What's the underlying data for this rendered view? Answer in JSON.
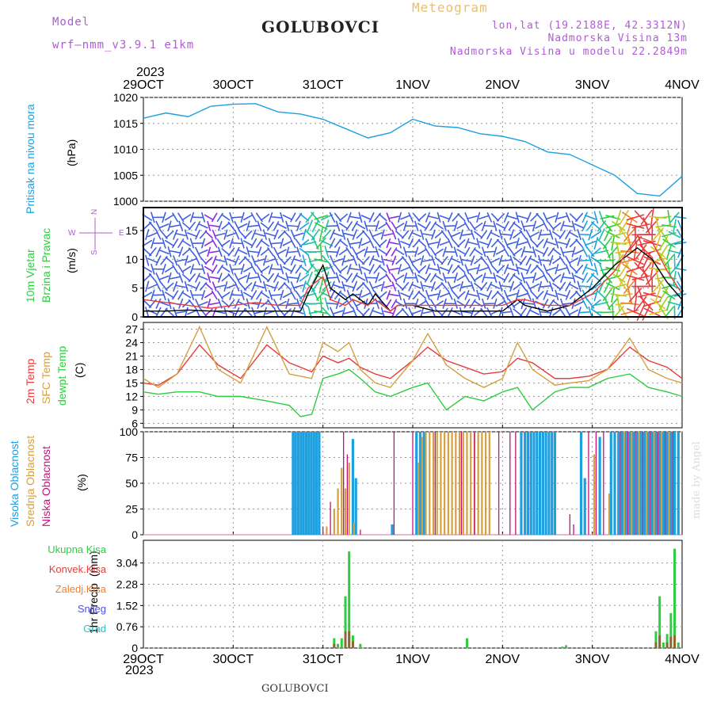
{
  "header": {
    "model_label": "Model",
    "model_name": "wrf—nmm_v3.9.1 e1km",
    "title": "GOLUBOVCI",
    "meteogram": "Meteogram",
    "lonlat": "lon,lat (19.2188E, 42.3312N)",
    "altitude": "Nadmorska Visina 13m",
    "model_altitude": "Nadmorska Visina u modelu 22.2849m",
    "year_top": "2023",
    "year_bottom": "2023",
    "footer_station": "GOLUBOVCI",
    "credit": "made by Angel",
    "colors": {
      "purple": "#b05cd6",
      "gold": "#e6c070",
      "title": "#222222"
    }
  },
  "chart_data": [
    {
      "id": "pressure",
      "type": "line",
      "ylabel": "Pritisak na nivou mora",
      "unit": "(hPa)",
      "ylim": [
        1000,
        1020
      ],
      "yticks": [
        1000,
        1005,
        1010,
        1015,
        1020
      ],
      "xticks": [
        "29OCT",
        "30OCT",
        "31OCT",
        "1NOV",
        "2NOV",
        "3NOV",
        "4NOV"
      ],
      "x_hours": [
        0,
        6,
        12,
        18,
        24,
        30,
        36,
        42,
        48,
        54,
        60,
        66,
        72,
        78,
        84,
        90,
        96,
        102,
        108,
        114,
        120,
        126,
        132,
        138,
        144
      ],
      "series": [
        {
          "color": "#1ca0e0",
          "values": [
            1016,
            1017,
            1016.3,
            1018.3,
            1018.7,
            1018.8,
            1017.2,
            1016.8,
            1015.8,
            1014,
            1012.2,
            1013.2,
            1015.8,
            1014.5,
            1014.2,
            1013,
            1012.5,
            1011.5,
            1009.5,
            1009,
            1007,
            1005,
            1001.5,
            1001,
            1004.8
          ]
        }
      ]
    },
    {
      "id": "wind",
      "type": "line",
      "ylabel": "10m Vjetar",
      "ylabel2": "Brzina i Pravac",
      "unit": "(m/s)",
      "ylim": [
        0,
        19
      ],
      "yticks": [
        0,
        5,
        10,
        15
      ],
      "compass": {
        "n": "N",
        "s": "S",
        "e": "E",
        "w": "W"
      },
      "x_hours": [
        0,
        6,
        12,
        18,
        24,
        30,
        36,
        42,
        44,
        48,
        50,
        54,
        56,
        60,
        62,
        66,
        68,
        72,
        78,
        84,
        90,
        96,
        100,
        102,
        108,
        114,
        120,
        126,
        132,
        136,
        140,
        144
      ],
      "series": [
        {
          "color": "#000000",
          "values": [
            1,
            1,
            1.2,
            1,
            1,
            1,
            1,
            1,
            4,
            9,
            5,
            3,
            4,
            2,
            4,
            1,
            2,
            2,
            1,
            1,
            1,
            1,
            3,
            2,
            1,
            2,
            5,
            9,
            12,
            10,
            6,
            3
          ]
        },
        {
          "color": "#e63c3c",
          "values": [
            3,
            2.5,
            2,
            1.5,
            2,
            2.5,
            2,
            2,
            5,
            7,
            3,
            2,
            3,
            2,
            3,
            1,
            2,
            2,
            2,
            2,
            2,
            2,
            3,
            3,
            2,
            2,
            4,
            8,
            14,
            13,
            8,
            4
          ]
        }
      ]
    },
    {
      "id": "temperature",
      "type": "line",
      "unit": "(C)",
      "ylim": [
        5,
        28.5
      ],
      "yticks": [
        6,
        9,
        12,
        15,
        18,
        21,
        24,
        27
      ],
      "series": [
        {
          "name": "2m Temp",
          "color": "#e63c3c",
          "x": [
            0,
            4,
            9,
            15,
            20,
            26,
            33,
            39,
            45,
            48,
            52,
            55,
            58,
            62,
            66,
            72,
            76,
            81,
            86,
            91,
            96,
            100,
            104,
            110,
            114,
            119,
            124,
            130,
            135,
            140,
            144
          ],
          "values": [
            15,
            14.5,
            17,
            23.5,
            19,
            16,
            23.5,
            19.5,
            17.5,
            21,
            19.5,
            20.5,
            18.5,
            17,
            16,
            20,
            23,
            20,
            18.5,
            17,
            17.5,
            20.5,
            19.5,
            16,
            16,
            16.5,
            18,
            23,
            20,
            18.5,
            16
          ]
        },
        {
          "name": "SFC Temp",
          "color": "#d4a040",
          "x": [
            0,
            4,
            9,
            15,
            20,
            26,
            33,
            39,
            45,
            48,
            52,
            55,
            58,
            62,
            66,
            72,
            76,
            81,
            86,
            91,
            96,
            100,
            104,
            110,
            114,
            119,
            124,
            130,
            135,
            140,
            144
          ],
          "values": [
            16,
            14,
            17,
            27.5,
            18,
            15,
            27.5,
            17,
            16,
            24,
            22,
            24,
            18,
            15,
            14,
            20,
            26,
            19,
            16,
            14,
            16,
            24,
            18,
            14.5,
            15,
            15.5,
            18,
            25,
            18,
            16,
            15
          ]
        },
        {
          "name": "dewpt Temp",
          "color": "#2ecc40",
          "x": [
            0,
            4,
            9,
            15,
            20,
            26,
            33,
            39,
            42,
            45,
            48,
            52,
            55,
            58,
            62,
            66,
            72,
            76,
            81,
            86,
            91,
            96,
            100,
            104,
            110,
            114,
            119,
            124,
            130,
            135,
            140,
            144
          ],
          "values": [
            13,
            12.5,
            13,
            13,
            12,
            12,
            11,
            10,
            7.5,
            8,
            16,
            17,
            18,
            16,
            13,
            12,
            14,
            15,
            9,
            12,
            11,
            13,
            14,
            9,
            13,
            14,
            14,
            16,
            17,
            14,
            13,
            12
          ]
        }
      ]
    },
    {
      "id": "clouds",
      "type": "bar",
      "unit": "(%)",
      "ylim": [
        0,
        100
      ],
      "yticks": [
        0,
        25,
        50,
        75,
        100
      ],
      "series": [
        {
          "name": "Visoka Oblacnost",
          "color": "#1ca0e0",
          "bars": [
            [
              40,
              100
            ],
            [
              40.7,
              100
            ],
            [
              41.4,
              100
            ],
            [
              42.1,
              100
            ],
            [
              42.8,
              100
            ],
            [
              43.5,
              100
            ],
            [
              44.2,
              100
            ],
            [
              44.9,
              100
            ],
            [
              45.6,
              100
            ],
            [
              46.3,
              100
            ],
            [
              47,
              100
            ],
            [
              56,
              93
            ],
            [
              56.8,
              55
            ],
            [
              66.5,
              10
            ],
            [
              73,
              100
            ],
            [
              74,
              100
            ],
            [
              75,
              100
            ],
            [
              101,
              100
            ],
            [
              102,
              100
            ],
            [
              102.8,
              100
            ],
            [
              103.6,
              100
            ],
            [
              104.4,
              100
            ],
            [
              105.2,
              100
            ],
            [
              106,
              100
            ],
            [
              106.8,
              100
            ],
            [
              107.6,
              100
            ],
            [
              108.4,
              100
            ],
            [
              109.2,
              100
            ],
            [
              110,
              100
            ],
            [
              117,
              100
            ],
            [
              118,
              55
            ],
            [
              122,
              95
            ],
            [
              125,
              100
            ],
            [
              126,
              100
            ],
            [
              127,
              100
            ],
            [
              128,
              100
            ],
            [
              129,
              100
            ],
            [
              130,
              100
            ],
            [
              131,
              100
            ],
            [
              132,
              100
            ],
            [
              133,
              100
            ],
            [
              134,
              100
            ],
            [
              135,
              100
            ],
            [
              136,
              100
            ],
            [
              137,
              100
            ],
            [
              138,
              100
            ],
            [
              139,
              100
            ],
            [
              140,
              100
            ],
            [
              141,
              100
            ],
            [
              142,
              100
            ],
            [
              143,
              100
            ]
          ]
        },
        {
          "name": "Srednja Oblacnost",
          "color": "#d4a040",
          "bars": [
            [
              49,
              8
            ],
            [
              51,
              25
            ],
            [
              52,
              45
            ],
            [
              53,
              65
            ],
            [
              54,
              45
            ],
            [
              55,
              70
            ],
            [
              56.3,
              12
            ],
            [
              73.5,
              70
            ],
            [
              74.5,
              95
            ],
            [
              75.5,
              100
            ],
            [
              76.5,
              100
            ],
            [
              77.5,
              100
            ],
            [
              78.5,
              100
            ],
            [
              79.5,
              100
            ],
            [
              80.5,
              100
            ],
            [
              81.5,
              100
            ],
            [
              82.5,
              100
            ],
            [
              83.5,
              100
            ],
            [
              84.5,
              100
            ],
            [
              85.5,
              100
            ],
            [
              86.5,
              100
            ],
            [
              87.5,
              100
            ],
            [
              88.5,
              100
            ],
            [
              89.5,
              100
            ],
            [
              90.5,
              100
            ],
            [
              91.5,
              100
            ],
            [
              92.5,
              100
            ],
            [
              120.5,
              78
            ],
            [
              124.5,
              40
            ],
            [
              128.5,
              100
            ],
            [
              130.5,
              100
            ],
            [
              132.5,
              100
            ],
            [
              134.5,
              100
            ],
            [
              136.5,
              100
            ],
            [
              138.5,
              100
            ],
            [
              140.5,
              100
            ]
          ]
        },
        {
          "name": "Niska Oblacnost",
          "color": "#c0147a",
          "bars": [
            [
              48,
              8
            ],
            [
              50,
              32
            ],
            [
              53.5,
              100
            ],
            [
              54.5,
              78
            ],
            [
              58,
              5
            ],
            [
              67,
              100
            ],
            [
              72,
              100
            ],
            [
              78,
              100
            ],
            [
              85,
              100
            ],
            [
              88.5,
              100
            ],
            [
              95,
              100
            ],
            [
              98,
              100
            ],
            [
              99.5,
              100
            ],
            [
              114,
              20
            ],
            [
              115,
              10
            ],
            [
              119,
              100
            ],
            [
              121,
              100
            ],
            [
              123,
              100
            ],
            [
              127.5,
              100
            ],
            [
              129.5,
              100
            ],
            [
              131.5,
              100
            ],
            [
              133.5,
              100
            ],
            [
              135.5,
              100
            ],
            [
              137.5,
              100
            ],
            [
              139.5,
              100
            ],
            [
              141.5,
              100
            ]
          ]
        }
      ]
    },
    {
      "id": "precip",
      "type": "bar",
      "ylabel": "1hr Precip",
      "unit": "(mm)",
      "ylim": [
        0,
        3.85
      ],
      "yticks": [
        0,
        0.76,
        1.52,
        2.28,
        3.04
      ],
      "ytick_labels": [
        "0",
        "0.76",
        "1.52",
        "2.28",
        "3.04"
      ],
      "legend": [
        "Ukupna Kisa",
        "Konvek.Kisa",
        "Zaledj.Kisa",
        "Snijeg",
        "Grad"
      ],
      "legend_colors": [
        "#2ecc40",
        "#e63c3c",
        "#f08030",
        "#5050e0",
        "#30c0c0"
      ],
      "bars_total": [
        [
          51,
          0.35
        ],
        [
          52,
          0.15
        ],
        [
          53,
          0.35
        ],
        [
          54,
          1.85
        ],
        [
          55,
          3.45
        ],
        [
          56,
          0.45
        ],
        [
          58,
          0.15
        ],
        [
          86.5,
          0.35
        ],
        [
          112,
          0.05
        ],
        [
          113,
          0.1
        ],
        [
          137,
          0.6
        ],
        [
          138,
          1.85
        ],
        [
          139,
          0.2
        ],
        [
          140,
          0.5
        ],
        [
          141,
          1.25
        ],
        [
          142,
          3.55
        ],
        [
          143,
          0.2
        ]
      ],
      "bars_conv": [
        [
          51,
          0.15
        ],
        [
          54,
          0.6
        ],
        [
          55,
          0.6
        ],
        [
          56,
          0.25
        ],
        [
          137,
          0.2
        ],
        [
          138,
          0.45
        ],
        [
          140,
          0.2
        ],
        [
          141,
          0.4
        ],
        [
          142,
          0.45
        ]
      ]
    }
  ]
}
